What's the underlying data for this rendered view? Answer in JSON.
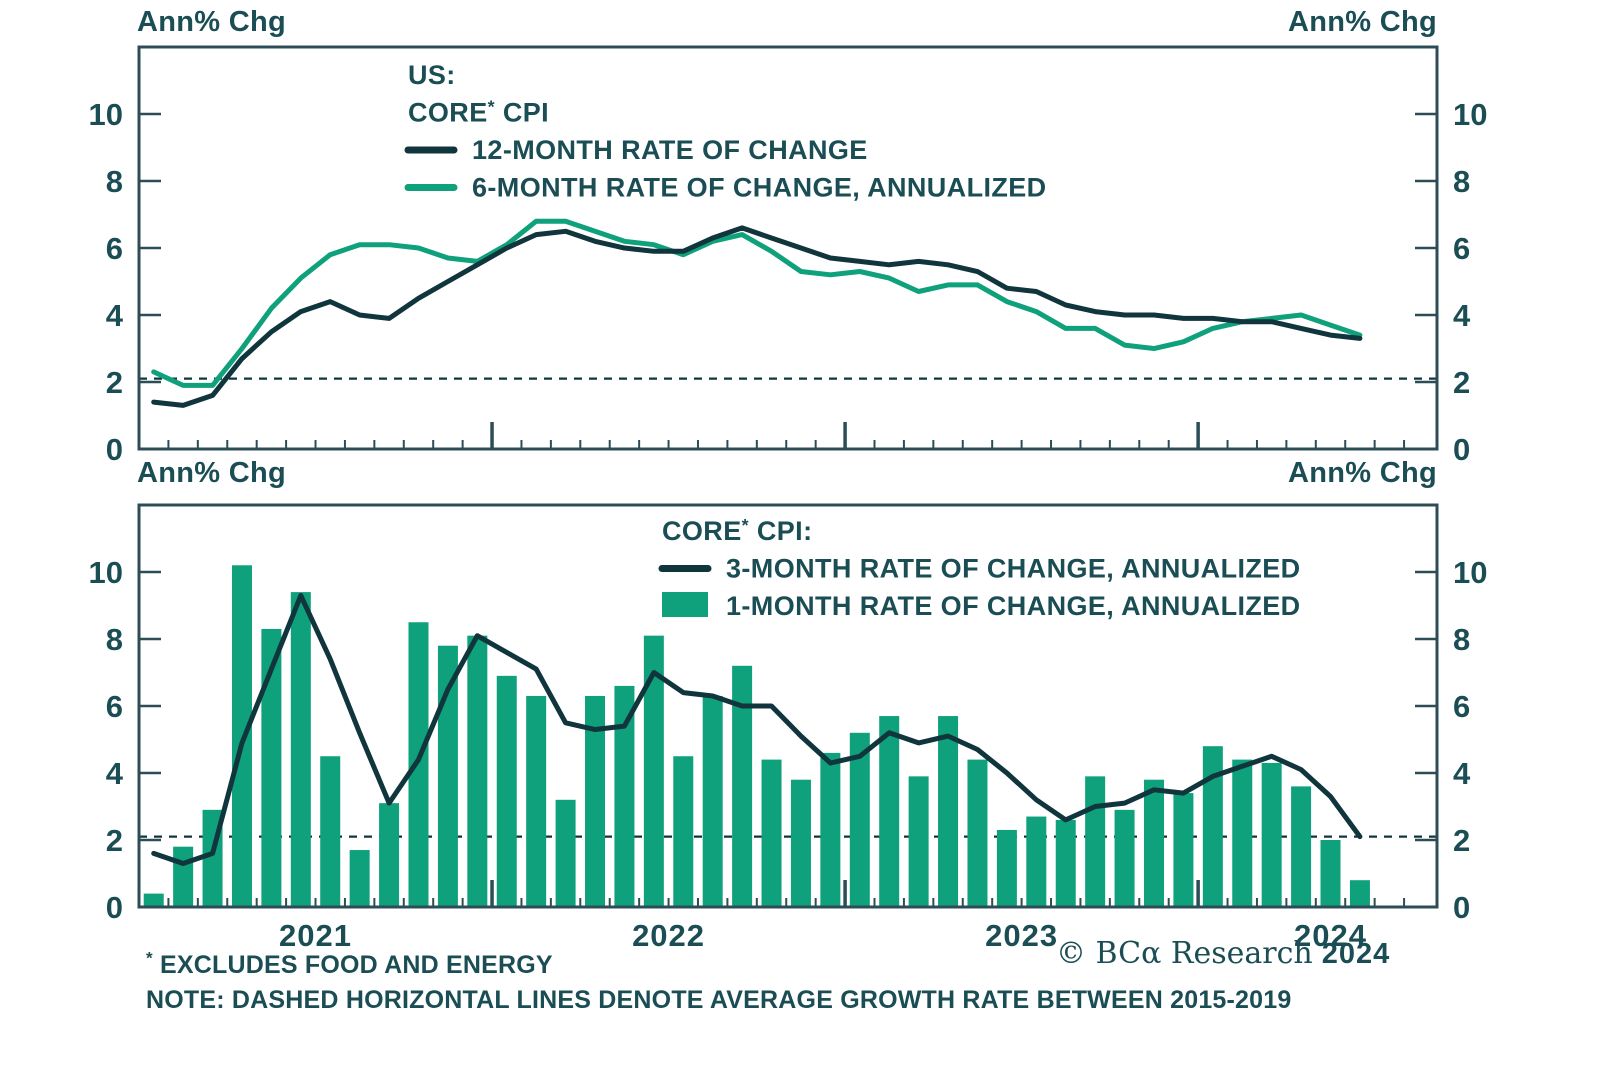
{
  "labels": {
    "ann_pct_chg": "Ann% Chg"
  },
  "footnotes": {
    "excludes_sup": "*",
    "excludes": " EXCLUDES FOOD AND ENERGY",
    "note": "NOTE: DASHED HORIZONTAL LINES DENOTE AVERAGE GROWTH RATE BETWEEN 2015-2019"
  },
  "copyright": {
    "brand": "© BCα Research",
    "year": "2024"
  },
  "colors": {
    "green": "#0fa17b",
    "dark": "#10353d",
    "text": "#1b4d55",
    "frame": "#2d4d56",
    "dashed": "#10353d",
    "background": "#ffffff"
  },
  "chart_data": [
    {
      "type": "line",
      "panel": "top",
      "title_lines": [
        "US:",
        "CORE* CPI"
      ],
      "frequency": "monthly",
      "x_range": [
        "2021-01",
        "2024-06"
      ],
      "year_tick_labels": [
        "2021",
        "2022",
        "2023",
        "2024"
      ],
      "ylim": [
        0,
        12
      ],
      "yticks": [
        0,
        2,
        4,
        6,
        8,
        10
      ],
      "ylabel_left": "Ann% Chg",
      "ylabel_right": "Ann% Chg",
      "grid": "off",
      "baseline_dashed_avg_2015_2019": 2.1,
      "series": [
        {
          "name": "12-MONTH RATE OF CHANGE",
          "color_key": "dark",
          "style": "line",
          "values": [
            1.4,
            1.3,
            1.6,
            2.7,
            3.5,
            4.1,
            4.4,
            4.0,
            3.9,
            4.5,
            5.0,
            5.5,
            6.0,
            6.4,
            6.5,
            6.2,
            6.0,
            5.9,
            5.9,
            6.3,
            6.6,
            6.3,
            6.0,
            5.7,
            5.6,
            5.5,
            5.6,
            5.5,
            5.3,
            4.8,
            4.7,
            4.3,
            4.1,
            4.0,
            4.0,
            3.9,
            3.9,
            3.8,
            3.8,
            3.6,
            3.4,
            3.3
          ]
        },
        {
          "name": "6-MONTH RATE OF CHANGE, ANNUALIZED",
          "color_key": "green",
          "style": "line",
          "values": [
            2.3,
            1.9,
            1.9,
            3.0,
            4.2,
            5.1,
            5.8,
            6.1,
            6.1,
            6.0,
            5.7,
            5.6,
            6.1,
            6.8,
            6.8,
            6.5,
            6.2,
            6.1,
            5.8,
            6.2,
            6.4,
            5.9,
            5.3,
            5.2,
            5.3,
            5.1,
            4.7,
            4.9,
            4.9,
            4.4,
            4.1,
            3.6,
            3.6,
            3.1,
            3.0,
            3.2,
            3.6,
            3.8,
            3.9,
            4.0,
            3.7,
            3.4
          ]
        }
      ]
    },
    {
      "type": "bar+line",
      "panel": "bottom",
      "title_lines": [
        "CORE* CPI:"
      ],
      "frequency": "monthly",
      "x_range": [
        "2021-01",
        "2024-06"
      ],
      "year_tick_labels": [
        "2021",
        "2022",
        "2023",
        "2024"
      ],
      "ylim": [
        0,
        12
      ],
      "yticks": [
        0,
        2,
        4,
        6,
        8,
        10
      ],
      "ylabel_left": "Ann% Chg",
      "ylabel_right": "Ann% Chg",
      "grid": "off",
      "baseline_dashed_avg_2015_2019": 2.1,
      "series": [
        {
          "name": "3-MONTH RATE OF CHANGE, ANNUALIZED",
          "color_key": "dark",
          "style": "line",
          "values": [
            1.6,
            1.3,
            1.6,
            4.9,
            7.1,
            9.3,
            7.4,
            5.2,
            3.1,
            4.4,
            6.5,
            8.1,
            7.6,
            7.1,
            5.5,
            5.3,
            5.4,
            7.0,
            6.4,
            6.3,
            6.0,
            6.0,
            5.1,
            4.3,
            4.5,
            5.2,
            4.9,
            5.1,
            4.7,
            4.0,
            3.2,
            2.6,
            3.0,
            3.1,
            3.5,
            3.4,
            3.9,
            4.2,
            4.5,
            4.1,
            3.3,
            2.1
          ]
        },
        {
          "name": "1-MONTH RATE OF CHANGE, ANNUALIZED",
          "color_key": "green",
          "style": "bar",
          "values": [
            0.4,
            1.8,
            2.9,
            10.2,
            8.3,
            9.4,
            4.5,
            1.7,
            3.1,
            8.5,
            7.8,
            8.1,
            6.9,
            6.3,
            3.2,
            6.3,
            6.6,
            8.1,
            4.5,
            6.3,
            7.2,
            4.4,
            3.8,
            4.6,
            5.2,
            5.7,
            3.9,
            5.7,
            4.4,
            2.3,
            2.7,
            2.6,
            3.9,
            2.9,
            3.8,
            3.4,
            4.8,
            4.4,
            4.3,
            3.6,
            2.0,
            0.8
          ]
        }
      ]
    }
  ]
}
